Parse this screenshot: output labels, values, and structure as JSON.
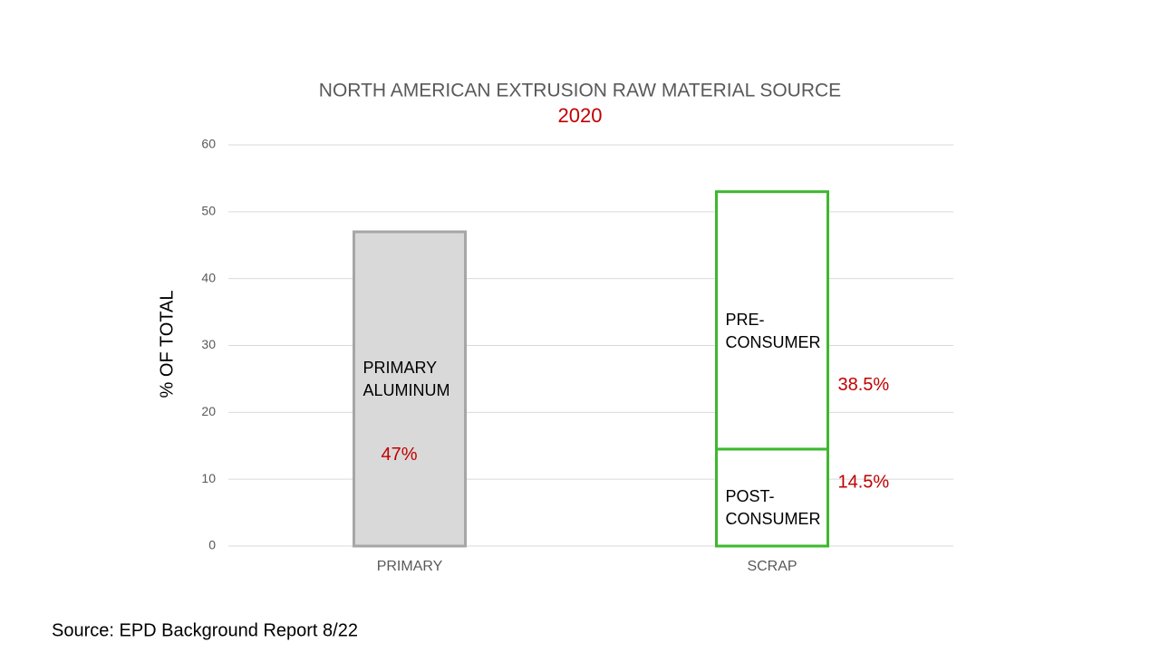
{
  "chart_data": {
    "type": "stacked_bar",
    "title": "NORTH AMERICAN EXTRUSION RAW MATERIAL SOURCE",
    "subtitle": "2020",
    "y_label": "% OF TOTAL",
    "categories": [
      "PRIMARY",
      "SCRAP"
    ],
    "series": [
      {
        "name": "PRIMARY ALUMINUM",
        "color": "#d9d9d9",
        "edge_color": "#a6a6a6",
        "values": [
          47,
          null
        ],
        "value_labels": [
          "47%",
          null
        ]
      },
      {
        "name": "POST-CONSUMER",
        "color": "#ffffff",
        "edge_color": "#3cb82e",
        "values": [
          null,
          14.5
        ],
        "value_labels": [
          null,
          "14.5%"
        ]
      },
      {
        "name": "PRE-CONSUMER",
        "color": "#ffffff",
        "edge_color": "#3cb82e",
        "values": [
          null,
          38.5
        ],
        "value_labels": [
          null,
          "38.5%"
        ]
      }
    ],
    "ylim": [
      0,
      60
    ],
    "yticks": [
      0,
      10,
      20,
      30,
      40,
      50,
      60
    ],
    "grid": true,
    "source": "Source:  EPD Background Report 8/22"
  }
}
